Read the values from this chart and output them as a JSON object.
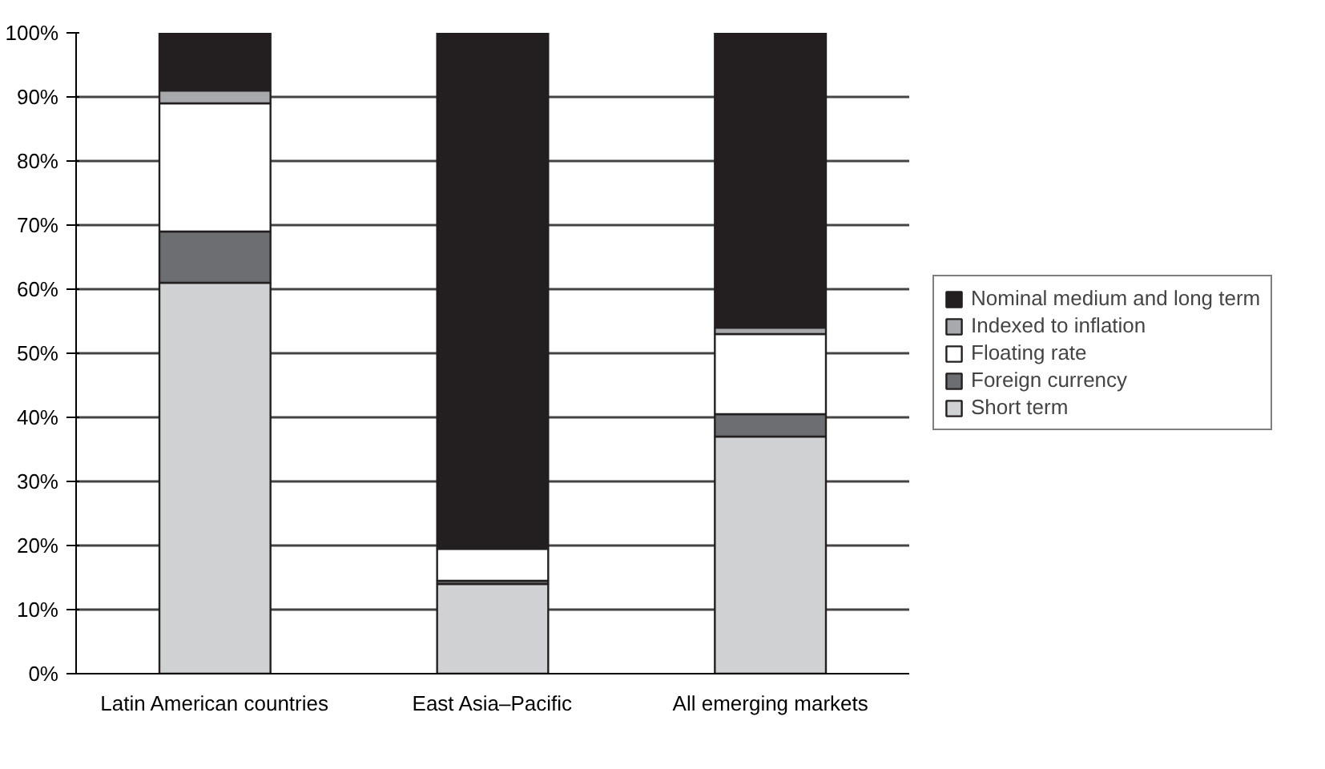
{
  "chart_data": {
    "type": "bar",
    "stacked": true,
    "categories": [
      "Latin American countries",
      "East Asia–Pacific",
      "All emerging markets"
    ],
    "series": [
      {
        "name": "Short term",
        "color": "#d0d1d3",
        "values": [
          61,
          14,
          37
        ]
      },
      {
        "name": "Foreign currency",
        "color": "#6d6e71",
        "values": [
          8,
          0.5,
          3.5
        ]
      },
      {
        "name": "Floating rate",
        "color": "#ffffff",
        "values": [
          20,
          5,
          12.5
        ]
      },
      {
        "name": "Indexed to inflation",
        "color": "#a7a9ac",
        "values": [
          2,
          0,
          1
        ]
      },
      {
        "name": "Nominal medium and long term",
        "color": "#231f20",
        "values": [
          9,
          80.5,
          46
        ]
      }
    ],
    "ylim": [
      0,
      100
    ],
    "yticks": [
      {
        "value": 0,
        "label": "0%"
      },
      {
        "value": 10,
        "label": "10%"
      },
      {
        "value": 20,
        "label": "20%"
      },
      {
        "value": 30,
        "label": "30%"
      },
      {
        "value": 40,
        "label": "40%"
      },
      {
        "value": 50,
        "label": "50%"
      },
      {
        "value": 60,
        "label": "60%"
      },
      {
        "value": 70,
        "label": "70%"
      },
      {
        "value": 80,
        "label": "80%"
      },
      {
        "value": 90,
        "label": "90%"
      },
      {
        "value": 100,
        "label": "100%"
      }
    ],
    "grid": "y",
    "legend": "right"
  }
}
